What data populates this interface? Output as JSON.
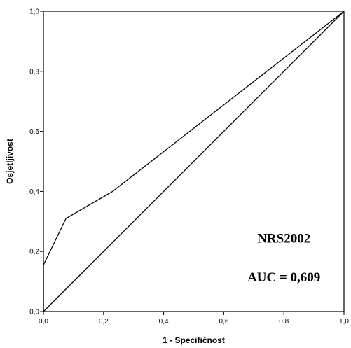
{
  "chart_data": {
    "type": "line",
    "xlabel": "1 - Specifičnost",
    "ylabel": "Osjetljivost",
    "xlim": [
      0,
      1
    ],
    "ylim": [
      0,
      1
    ],
    "x_ticks": [
      0,
      0.2,
      0.4,
      0.6,
      0.8,
      1.0
    ],
    "y_ticks": [
      0,
      0.2,
      0.4,
      0.6,
      0.8,
      1.0
    ],
    "x_tick_labels": [
      "0,0",
      "0,2",
      "0,4",
      "0,6",
      "0,8",
      "1,0"
    ],
    "y_tick_labels": [
      "0,0",
      "0,2",
      "0,4",
      "0,6",
      "0,8",
      "1,0"
    ],
    "grid": false,
    "series": [
      {
        "x": [
          0,
          0,
          0.075,
          0.23,
          1.0
        ],
        "y": [
          0,
          0.155,
          0.31,
          0.4,
          1.0
        ],
        "color": "#000000"
      },
      {
        "x": [
          0,
          1.0
        ],
        "y": [
          0,
          1.0
        ],
        "color": "#000000"
      }
    ],
    "annotations": [
      {
        "text": "NRS2002",
        "x": 0.8,
        "y": 0.23
      },
      {
        "text": "AUC = 0,609",
        "x": 0.8,
        "y": 0.1
      }
    ]
  }
}
